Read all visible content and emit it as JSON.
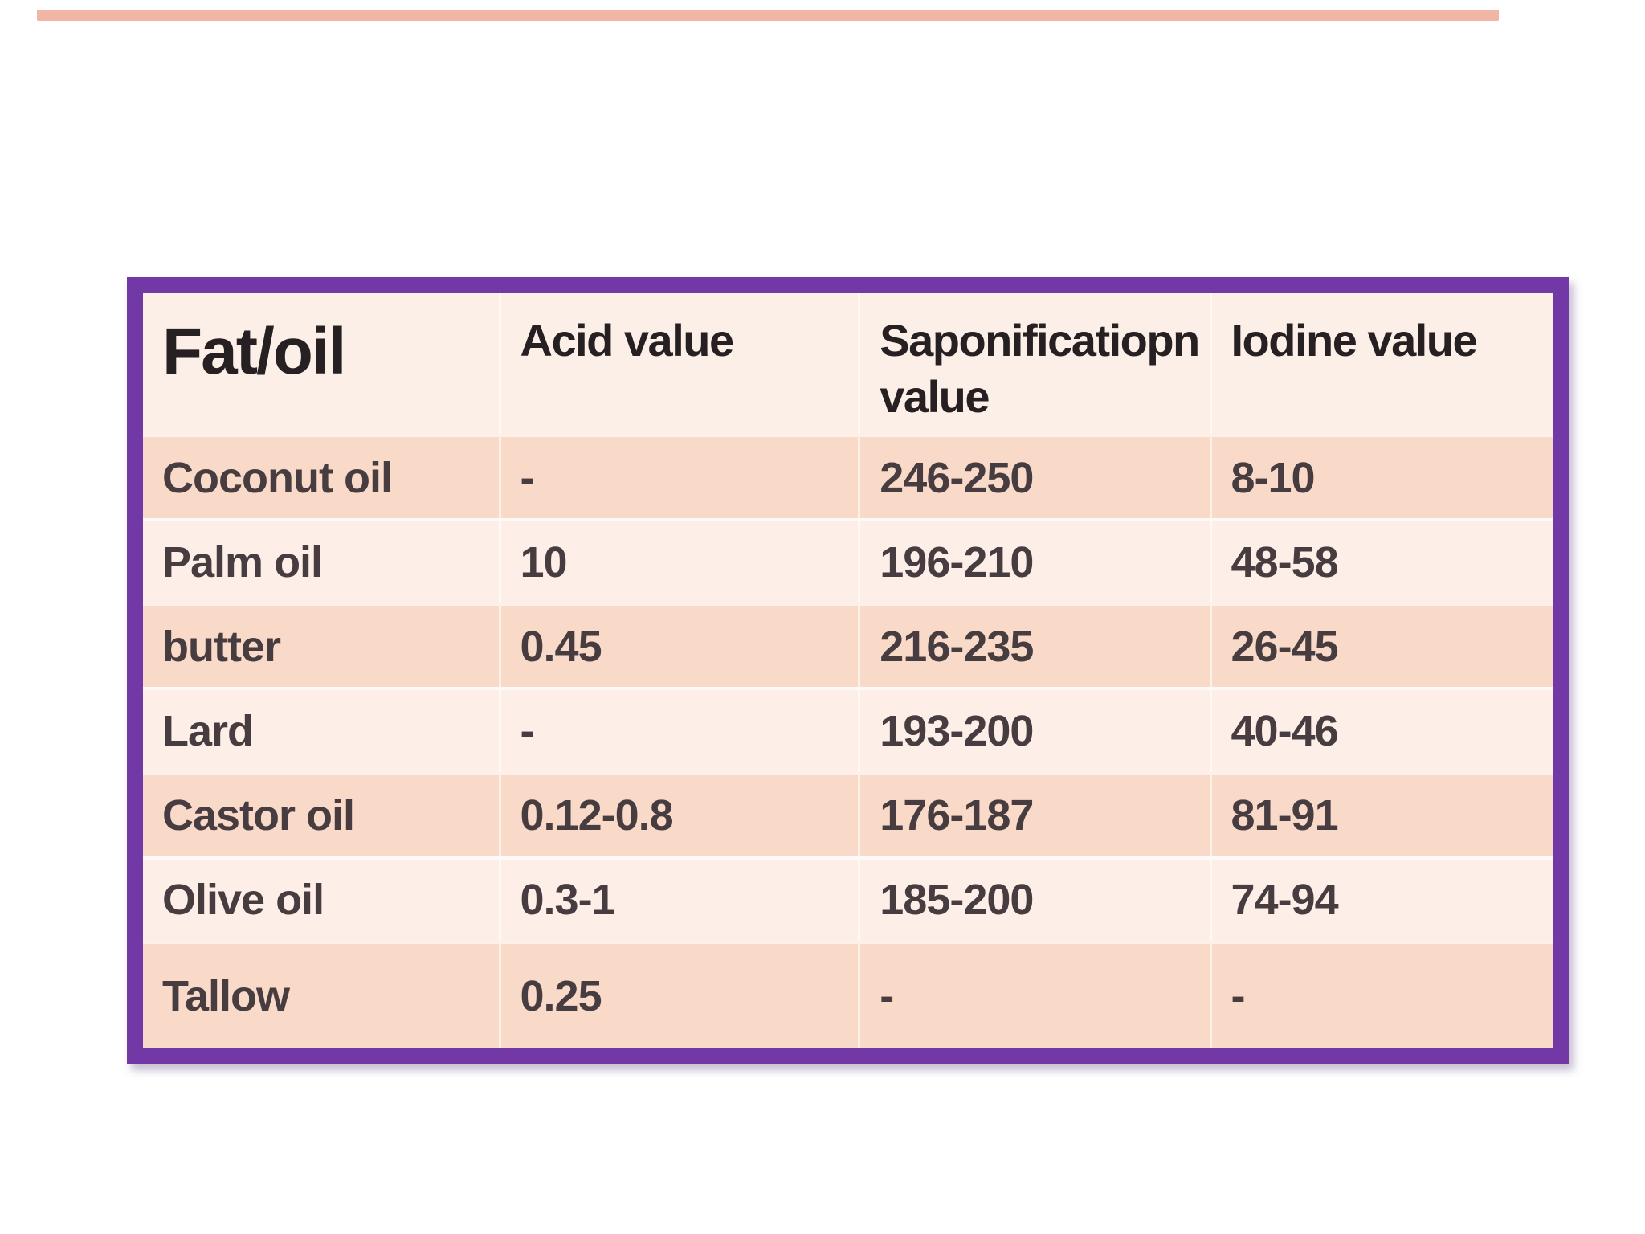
{
  "slide": {
    "background": "#ffffff"
  },
  "colors": {
    "slide-bg": "#ffffff",
    "accent-bar": "#f0b5a5",
    "border-purple": "#7138a6",
    "header-bg": "#fcefe7",
    "row-light": "#fdefe8",
    "row-dark": "#f9d9c7",
    "header-text": "#262022",
    "cell-text": "#473d40",
    "seam": "rgba(255,255,255,0.6)"
  },
  "top_accent_bar": {
    "color": "#f0b5a5"
  },
  "table": {
    "header": {
      "cells": [
        "Fat/oil",
        "Acid value",
        "Saponificatiopn value",
        "Iodine value"
      ]
    },
    "rows": [
      {
        "cells": [
          "Coconut oil",
          "-",
          "246-250",
          "8-10"
        ]
      },
      {
        "cells": [
          "Palm oil",
          "10",
          "196-210",
          "48-58"
        ]
      },
      {
        "cells": [
          "butter",
          "0.45",
          "216-235",
          "26-45"
        ]
      },
      {
        "cells": [
          "Lard",
          "-",
          "193-200",
          "40-46"
        ]
      },
      {
        "cells": [
          "Castor oil",
          "0.12-0.8",
          "176-187",
          "81-91"
        ]
      },
      {
        "cells": [
          "Olive oil",
          "0.3-1",
          "185-200",
          "74-94"
        ]
      },
      {
        "cells": [
          "Tallow",
          "0.25",
          "-",
          "-"
        ]
      }
    ]
  },
  "chart_data": {
    "type": "table",
    "title": "",
    "columns": [
      "Fat/oil",
      "Acid value",
      "Saponificatiopn value",
      "Iodine value"
    ],
    "rows": [
      [
        "Coconut oil",
        "-",
        "246-250",
        "8-10"
      ],
      [
        "Palm oil",
        "10",
        "196-210",
        "48-58"
      ],
      [
        "butter",
        "0.45",
        "216-235",
        "26-45"
      ],
      [
        "Lard",
        "-",
        "193-200",
        "40-46"
      ],
      [
        "Castor oil",
        "0.12-0.8",
        "176-187",
        "81-91"
      ],
      [
        "Olive oil",
        "0.3-1",
        "185-200",
        "74-94"
      ],
      [
        "Tallow",
        "0.25",
        "-",
        "-"
      ]
    ],
    "layout": {
      "banding": "alternating rows (salmon / cream)",
      "border": "thick purple frame"
    }
  }
}
